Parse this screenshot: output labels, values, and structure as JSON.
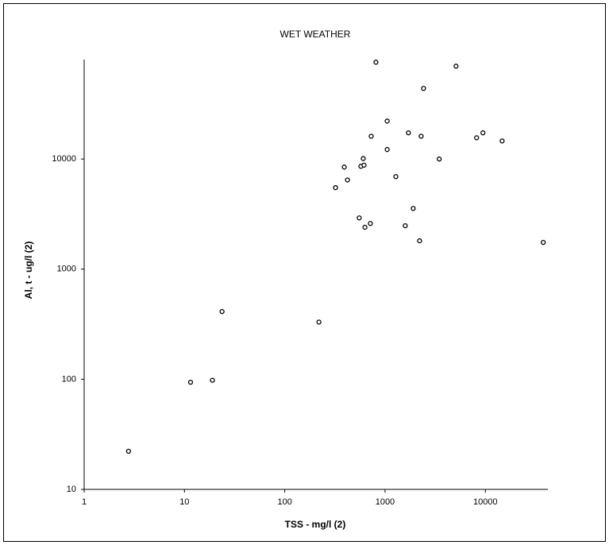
{
  "chart_data": {
    "type": "scatter",
    "title": "WET WEATHER",
    "x_label": "TSS - mg/l (2)",
    "y_label": "Al, t - ug/l (2)",
    "xscale": "log",
    "yscale": "log",
    "xlim": [
      1,
      42000
    ],
    "ylim": [
      10,
      80000
    ],
    "xticks": [
      1,
      10,
      100,
      1000,
      10000
    ],
    "yticks": [
      10,
      100,
      1000,
      10000
    ],
    "grid": false,
    "color": "#000000",
    "series": [
      {
        "x": [
          2.77,
          11.5,
          19,
          23.7,
          219,
          321,
          392,
          422,
          553,
          574,
          617,
          606,
          630,
          714,
          728,
          811,
          1050,
          1050,
          1280,
          1590,
          1710,
          1910,
          2210,
          2290,
          2420,
          3470,
          5100,
          8180,
          9460,
          14700,
          37800
        ],
        "values": [
          22.2,
          94,
          98,
          412,
          331,
          5500,
          8450,
          6460,
          2920,
          8590,
          8800,
          10100,
          2400,
          2600,
          16100,
          75700,
          22100,
          12200,
          6930,
          2480,
          17300,
          3560,
          1810,
          16100,
          43800,
          10000,
          69700,
          15600,
          17300,
          14600,
          1750
        ]
      }
    ]
  }
}
